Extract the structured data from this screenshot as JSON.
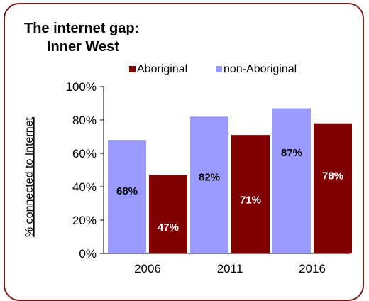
{
  "chart_data": {
    "type": "bar",
    "title_lines": [
      "The internet gap:",
      "Inner West"
    ],
    "ylabel": "% connected to Internet",
    "xlabel": "",
    "categories": [
      "2006",
      "2011",
      "2016"
    ],
    "series": [
      {
        "name": "non-Aboriginal",
        "values": [
          68,
          82,
          87
        ],
        "labels": [
          "68%",
          "82%",
          "87%"
        ],
        "color": "#9999ff"
      },
      {
        "name": "Aboriginal",
        "values": [
          47,
          71,
          78
        ],
        "labels": [
          "47%",
          "71%",
          "78%"
        ],
        "color": "#800000"
      }
    ],
    "legend_order": [
      "Aboriginal",
      "non-Aboriginal"
    ],
    "legend_position": "top",
    "ylim": [
      0,
      100
    ],
    "yticks": [
      "0%",
      "20%",
      "40%",
      "60%",
      "80%",
      "100%"
    ],
    "grid": false
  }
}
